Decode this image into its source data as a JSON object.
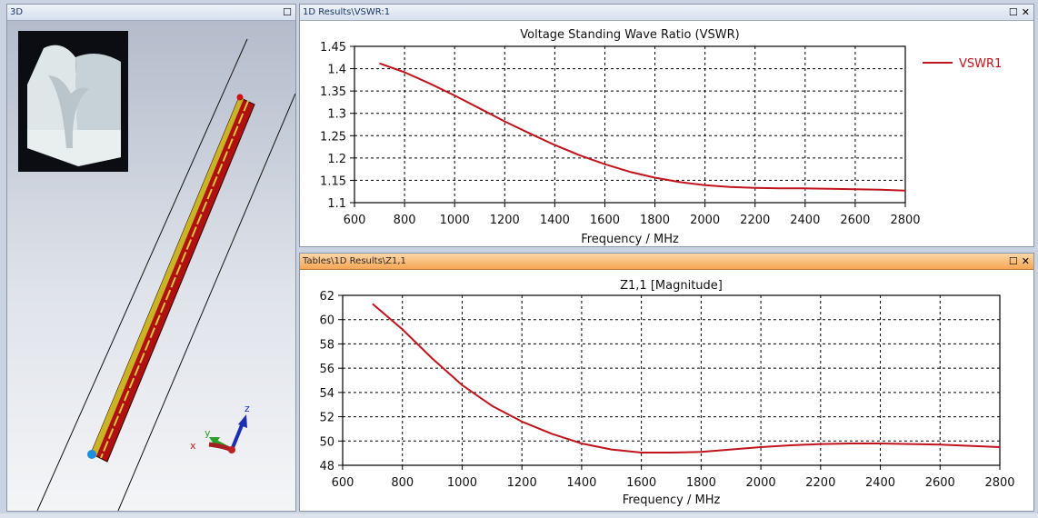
{
  "panels": {
    "view3d": {
      "title": "3D",
      "axes": {
        "x": "x",
        "y": "y",
        "z": "z"
      }
    },
    "vswr": {
      "title": "1D Results\\VSWR:1"
    },
    "z11": {
      "title": "Tables\\1D Results\\Z1,1"
    }
  },
  "colors": {
    "series": "#c0141c",
    "active_titlebar": "#f7a655"
  },
  "chart_data": [
    {
      "type": "line",
      "title": "Voltage Standing Wave Ratio (VSWR)",
      "xlabel": "Frequency / MHz",
      "ylabel": "",
      "xlim": [
        600,
        2800
      ],
      "ylim": [
        1.1,
        1.45
      ],
      "xticks": [
        "600",
        "800",
        "1000",
        "1200",
        "1400",
        "1600",
        "1800",
        "2000",
        "2200",
        "2400",
        "2600",
        "2800"
      ],
      "yticks": [
        "1.1",
        "1.15",
        "1.2",
        "1.25",
        "1.3",
        "1.35",
        "1.4",
        "1.45"
      ],
      "grid": true,
      "legend": "right",
      "series": [
        {
          "name": "VSWR1",
          "x": [
            700,
            800,
            900,
            1000,
            1100,
            1200,
            1300,
            1400,
            1500,
            1600,
            1700,
            1800,
            1900,
            2000,
            2100,
            2200,
            2300,
            2400,
            2500,
            2600,
            2700,
            2800
          ],
          "y": [
            1.412,
            1.392,
            1.367,
            1.34,
            1.311,
            1.282,
            1.255,
            1.229,
            1.206,
            1.186,
            1.169,
            1.156,
            1.146,
            1.139,
            1.135,
            1.133,
            1.132,
            1.132,
            1.131,
            1.13,
            1.129,
            1.127
          ]
        }
      ]
    },
    {
      "type": "line",
      "title": "Z1,1 [Magnitude]",
      "xlabel": "Frequency / MHz",
      "ylabel": "",
      "xlim": [
        600,
        2800
      ],
      "ylim": [
        48,
        62
      ],
      "xticks": [
        "600",
        "800",
        "1000",
        "1200",
        "1400",
        "1600",
        "1800",
        "2000",
        "2200",
        "2400",
        "2600",
        "2800"
      ],
      "yticks": [
        "48",
        "50",
        "52",
        "54",
        "56",
        "58",
        "60",
        "62"
      ],
      "grid": true,
      "legend": "none",
      "series": [
        {
          "name": "Z1,1",
          "x": [
            700,
            800,
            900,
            1000,
            1100,
            1200,
            1300,
            1400,
            1500,
            1600,
            1700,
            1800,
            1900,
            2000,
            2100,
            2200,
            2300,
            2400,
            2500,
            2600,
            2700,
            2800
          ],
          "y": [
            61.3,
            59.2,
            56.8,
            54.6,
            52.9,
            51.6,
            50.6,
            49.8,
            49.3,
            49.05,
            49.05,
            49.1,
            49.3,
            49.5,
            49.65,
            49.75,
            49.8,
            49.8,
            49.75,
            49.7,
            49.6,
            49.5
          ]
        }
      ]
    }
  ]
}
